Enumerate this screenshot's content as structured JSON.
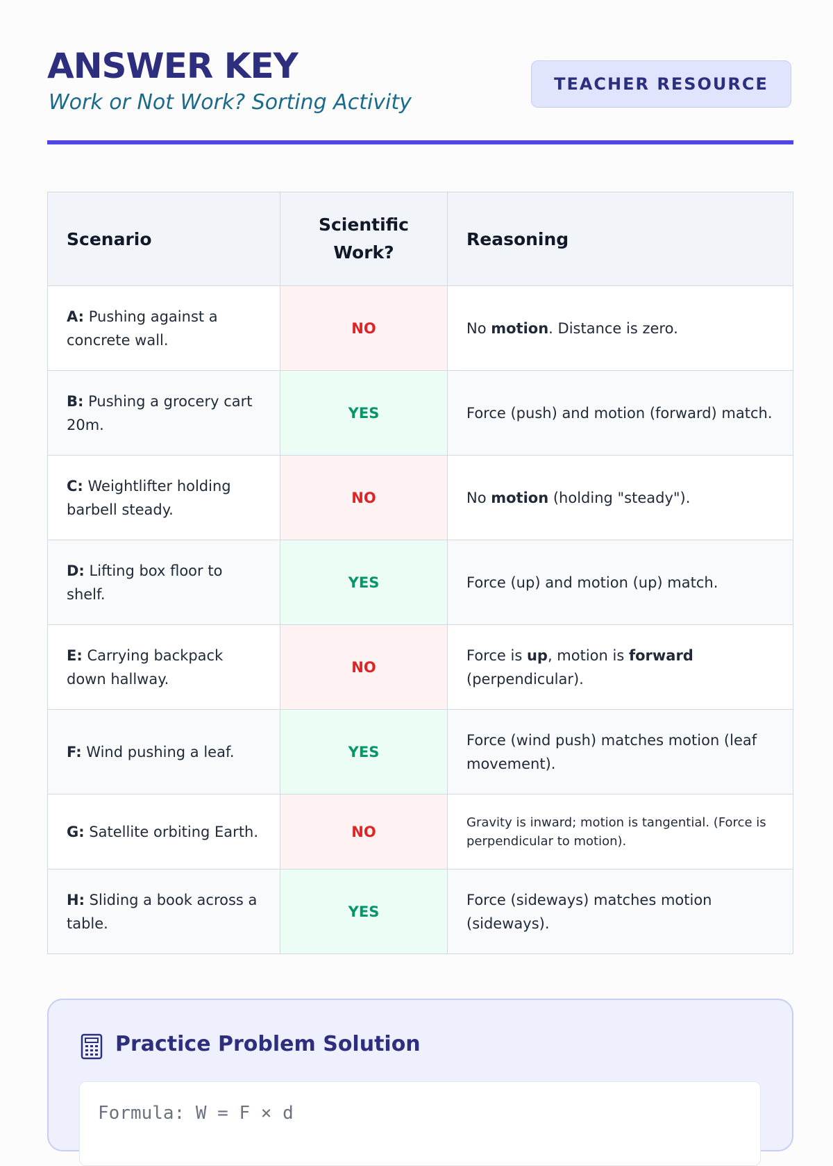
{
  "header": {
    "title": "ANSWER KEY",
    "subtitle": "Work or Not Work? Sorting Activity",
    "badge": "TEACHER RESOURCE"
  },
  "table": {
    "headers": [
      "Scenario",
      "Scientific Work?",
      "Reasoning"
    ],
    "rows": [
      {
        "label": "A:",
        "scenario": "Pushing against a concrete wall.",
        "verdict": "NO",
        "reasoning": [
          {
            "text": "No "
          },
          {
            "text": "motion",
            "bold": true
          },
          {
            "text": ". Distance is zero."
          }
        ]
      },
      {
        "label": "B:",
        "scenario": "Pushing a grocery cart 20m.",
        "verdict": "YES",
        "reasoning": [
          {
            "text": "Force (push) and motion (forward) match."
          }
        ]
      },
      {
        "label": "C:",
        "scenario": "Weightlifter holding barbell steady.",
        "verdict": "NO",
        "reasoning": [
          {
            "text": "No "
          },
          {
            "text": "motion",
            "bold": true
          },
          {
            "text": " (holding \"steady\")."
          }
        ]
      },
      {
        "label": "D:",
        "scenario": "Lifting box floor to shelf.",
        "verdict": "YES",
        "reasoning": [
          {
            "text": "Force (up) and motion (up) match."
          }
        ]
      },
      {
        "label": "E:",
        "scenario": "Carrying backpack down hallway.",
        "verdict": "NO",
        "reasoning": [
          {
            "text": "Force is "
          },
          {
            "text": "up",
            "bold": true
          },
          {
            "text": ", motion is "
          },
          {
            "text": "forward",
            "bold": true
          },
          {
            "text": " (perpendicular)."
          }
        ]
      },
      {
        "label": "F:",
        "scenario": "Wind pushing a leaf.",
        "verdict": "YES",
        "reasoning": [
          {
            "text": "Force (wind push) matches motion (leaf movement)."
          }
        ]
      },
      {
        "label": "G:",
        "scenario": "Satellite orbiting Earth.",
        "verdict": "NO",
        "reasoning": [
          {
            "text": "Gravity is inward; motion is tangential. (Force is perpendicular to motion)."
          }
        ]
      },
      {
        "label": "H:",
        "scenario": "Sliding a book across a table.",
        "verdict": "YES",
        "reasoning": [
          {
            "text": "Force (sideways) matches motion (sideways)."
          }
        ]
      }
    ]
  },
  "solution": {
    "title": "Practice Problem Solution",
    "formula": "Formula: W = F × d"
  }
}
